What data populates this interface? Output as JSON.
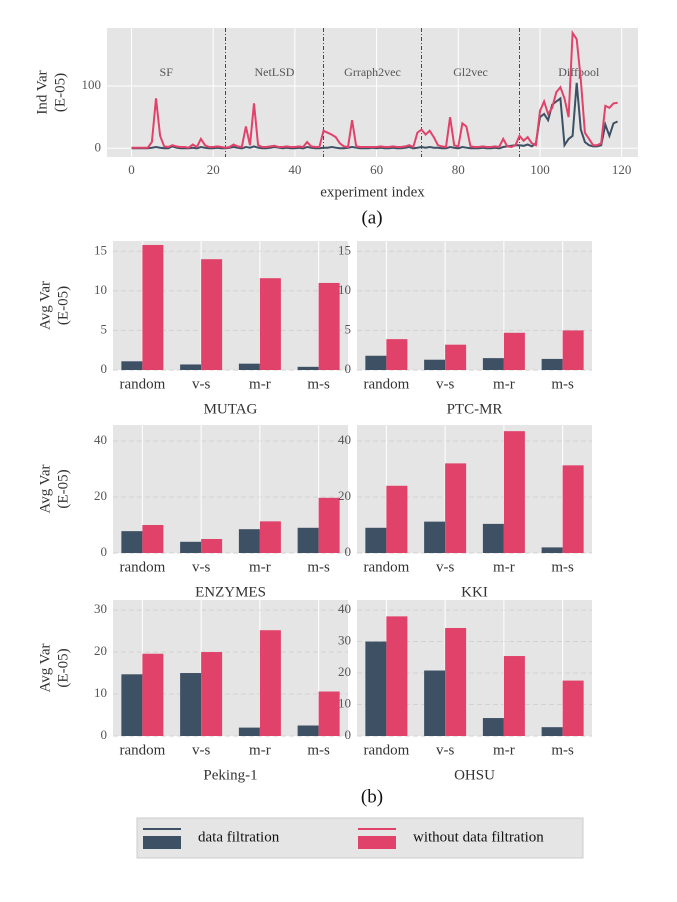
{
  "captions": [
    "(a)",
    "(b)"
  ],
  "chart_data": [
    {
      "type": "line",
      "ylabel": [
        "Ind Var",
        "(E-05)"
      ],
      "xlabel": "experiment index",
      "xlim": [
        -6,
        124
      ],
      "xticks": [
        0,
        20,
        40,
        60,
        80,
        100,
        120
      ],
      "ylim": [
        -14,
        193
      ],
      "yticks": [
        0,
        100
      ],
      "grid": true,
      "vlines": [
        23,
        47,
        71,
        95
      ],
      "annotations": [
        "SF",
        "NetLSD",
        "Grraph2vec",
        "Gl2vec",
        "Diffpool"
      ],
      "x": [
        0,
        1,
        2,
        3,
        4,
        5,
        6,
        7,
        8,
        9,
        10,
        11,
        12,
        13,
        14,
        15,
        16,
        17,
        18,
        19,
        20,
        21,
        22,
        23,
        24,
        25,
        26,
        27,
        28,
        29,
        30,
        31,
        32,
        33,
        34,
        35,
        36,
        37,
        38,
        39,
        40,
        41,
        42,
        43,
        44,
        45,
        46,
        47,
        48,
        49,
        50,
        51,
        52,
        53,
        54,
        55,
        56,
        57,
        58,
        59,
        60,
        61,
        62,
        63,
        64,
        65,
        66,
        67,
        68,
        69,
        70,
        71,
        72,
        73,
        74,
        75,
        76,
        77,
        78,
        79,
        80,
        81,
        82,
        83,
        84,
        85,
        86,
        87,
        88,
        89,
        90,
        91,
        92,
        93,
        94,
        95,
        96,
        97,
        98,
        99,
        100,
        101,
        102,
        103,
        104,
        105,
        106,
        107,
        108,
        109,
        110,
        111,
        112,
        113,
        114,
        115,
        116,
        117,
        118,
        119
      ],
      "series": [
        {
          "name": "data filtration",
          "color": "#3e5064",
          "values": [
            0,
            0,
            0,
            0,
            0,
            1,
            2,
            1,
            0,
            0,
            3,
            1,
            0,
            0,
            0,
            1,
            0,
            2,
            1,
            0,
            0,
            1,
            0,
            0,
            1,
            2,
            1,
            0,
            2,
            1,
            3,
            1,
            0,
            0,
            1,
            2,
            1,
            0,
            1,
            0,
            0,
            1,
            0,
            2,
            1,
            0,
            0,
            1,
            1,
            2,
            1,
            0,
            0,
            1,
            2,
            1,
            0,
            0,
            0,
            1,
            0,
            1,
            0,
            0,
            1,
            0,
            0,
            1,
            2,
            0,
            1,
            2,
            1,
            2,
            1,
            1,
            0,
            0,
            2,
            1,
            0,
            2,
            1,
            0,
            0,
            0,
            1,
            0,
            0,
            1,
            0,
            2,
            3,
            4,
            5,
            5,
            4,
            6,
            3,
            8,
            50,
            55,
            45,
            70,
            75,
            80,
            5,
            15,
            20,
            105,
            30,
            10,
            5,
            3,
            3,
            5,
            38,
            20,
            40,
            43
          ]
        },
        {
          "name": "without data filtration",
          "color": "#e0426a",
          "values": [
            1,
            1,
            1,
            1,
            1,
            10,
            80,
            20,
            3,
            2,
            5,
            3,
            2,
            2,
            1,
            6,
            2,
            15,
            5,
            2,
            2,
            3,
            2,
            1,
            2,
            6,
            3,
            2,
            35,
            5,
            72,
            5,
            2,
            2,
            3,
            4,
            2,
            2,
            3,
            2,
            2,
            3,
            2,
            10,
            3,
            2,
            2,
            28,
            25,
            22,
            18,
            8,
            3,
            2,
            45,
            3,
            2,
            2,
            2,
            2,
            2,
            3,
            2,
            2,
            3,
            2,
            2,
            3,
            5,
            2,
            25,
            30,
            22,
            28,
            18,
            5,
            3,
            2,
            50,
            5,
            3,
            40,
            35,
            3,
            2,
            2,
            3,
            2,
            2,
            3,
            2,
            15,
            3,
            2,
            5,
            20,
            12,
            18,
            8,
            5,
            60,
            75,
            55,
            65,
            90,
            98,
            80,
            50,
            185,
            175,
            110,
            25,
            15,
            5,
            5,
            8,
            68,
            65,
            72,
            73
          ]
        }
      ]
    },
    {
      "type": "bar",
      "title": "MUTAG",
      "ylabel": [
        "Avg Var",
        "(E-05)"
      ],
      "categories": [
        "random",
        "v-s",
        "m-r",
        "m-s"
      ],
      "ylim": [
        0,
        16.3
      ],
      "yticks": [
        0,
        5,
        10,
        15
      ],
      "grid": true,
      "series": [
        {
          "name": "data filtration",
          "color": "#3e5064",
          "values": [
            1.1,
            0.7,
            0.8,
            0.4
          ]
        },
        {
          "name": "without data filtration",
          "color": "#e0426a",
          "values": [
            15.8,
            14.0,
            11.6,
            11.0
          ]
        }
      ]
    },
    {
      "type": "bar",
      "title": "PTC-MR",
      "categories": [
        "random",
        "v-s",
        "m-r",
        "m-s"
      ],
      "ylim": [
        0,
        16.3
      ],
      "yticks": [
        0,
        5,
        10,
        15
      ],
      "grid": true,
      "series": [
        {
          "name": "data filtration",
          "color": "#3e5064",
          "values": [
            1.8,
            1.3,
            1.5,
            1.4
          ]
        },
        {
          "name": "without data filtration",
          "color": "#e0426a",
          "values": [
            3.9,
            3.2,
            4.7,
            5.0
          ]
        }
      ]
    },
    {
      "type": "bar",
      "title": "ENZYMES",
      "ylabel": [
        "Avg Var",
        "(E-05)"
      ],
      "categories": [
        "random",
        "v-s",
        "m-r",
        "m-s"
      ],
      "ylim": [
        0,
        45.7
      ],
      "yticks": [
        0,
        20,
        40
      ],
      "grid": true,
      "series": [
        {
          "name": "data filtration",
          "color": "#3e5064",
          "values": [
            7.8,
            4.0,
            8.5,
            9.0
          ]
        },
        {
          "name": "without data filtration",
          "color": "#e0426a",
          "values": [
            10.0,
            5.0,
            11.3,
            19.7
          ]
        }
      ]
    },
    {
      "type": "bar",
      "title": "KKI",
      "categories": [
        "random",
        "v-s",
        "m-r",
        "m-s"
      ],
      "ylim": [
        0,
        45.7
      ],
      "yticks": [
        0,
        20,
        40
      ],
      "grid": true,
      "series": [
        {
          "name": "data filtration",
          "color": "#3e5064",
          "values": [
            9.0,
            11.2,
            10.4,
            2.0
          ]
        },
        {
          "name": "without data filtration",
          "color": "#e0426a",
          "values": [
            24.0,
            32.0,
            43.5,
            31.3
          ]
        }
      ]
    },
    {
      "type": "bar",
      "title": "Peking-1",
      "ylabel": [
        "Avg Var",
        "(E-05)"
      ],
      "categories": [
        "random",
        "v-s",
        "m-r",
        "m-s"
      ],
      "ylim": [
        0,
        32.4
      ],
      "yticks": [
        0,
        10,
        20,
        30
      ],
      "grid": true,
      "series": [
        {
          "name": "data filtration",
          "color": "#3e5064",
          "values": [
            14.7,
            15.0,
            2.0,
            2.5
          ]
        },
        {
          "name": "without data filtration",
          "color": "#e0426a",
          "values": [
            19.6,
            20.0,
            25.2,
            10.6
          ]
        }
      ]
    },
    {
      "type": "bar",
      "title": "OHSU",
      "categories": [
        "random",
        "v-s",
        "m-r",
        "m-s"
      ],
      "ylim": [
        0,
        43.2
      ],
      "yticks": [
        0,
        10,
        20,
        30,
        40
      ],
      "grid": true,
      "series": [
        {
          "name": "data filtration",
          "color": "#3e5064",
          "values": [
            30.0,
            20.8,
            5.7,
            2.8
          ]
        },
        {
          "name": "without data filtration",
          "color": "#e0426a",
          "values": [
            38.0,
            34.3,
            25.4,
            17.6
          ]
        }
      ]
    }
  ]
}
